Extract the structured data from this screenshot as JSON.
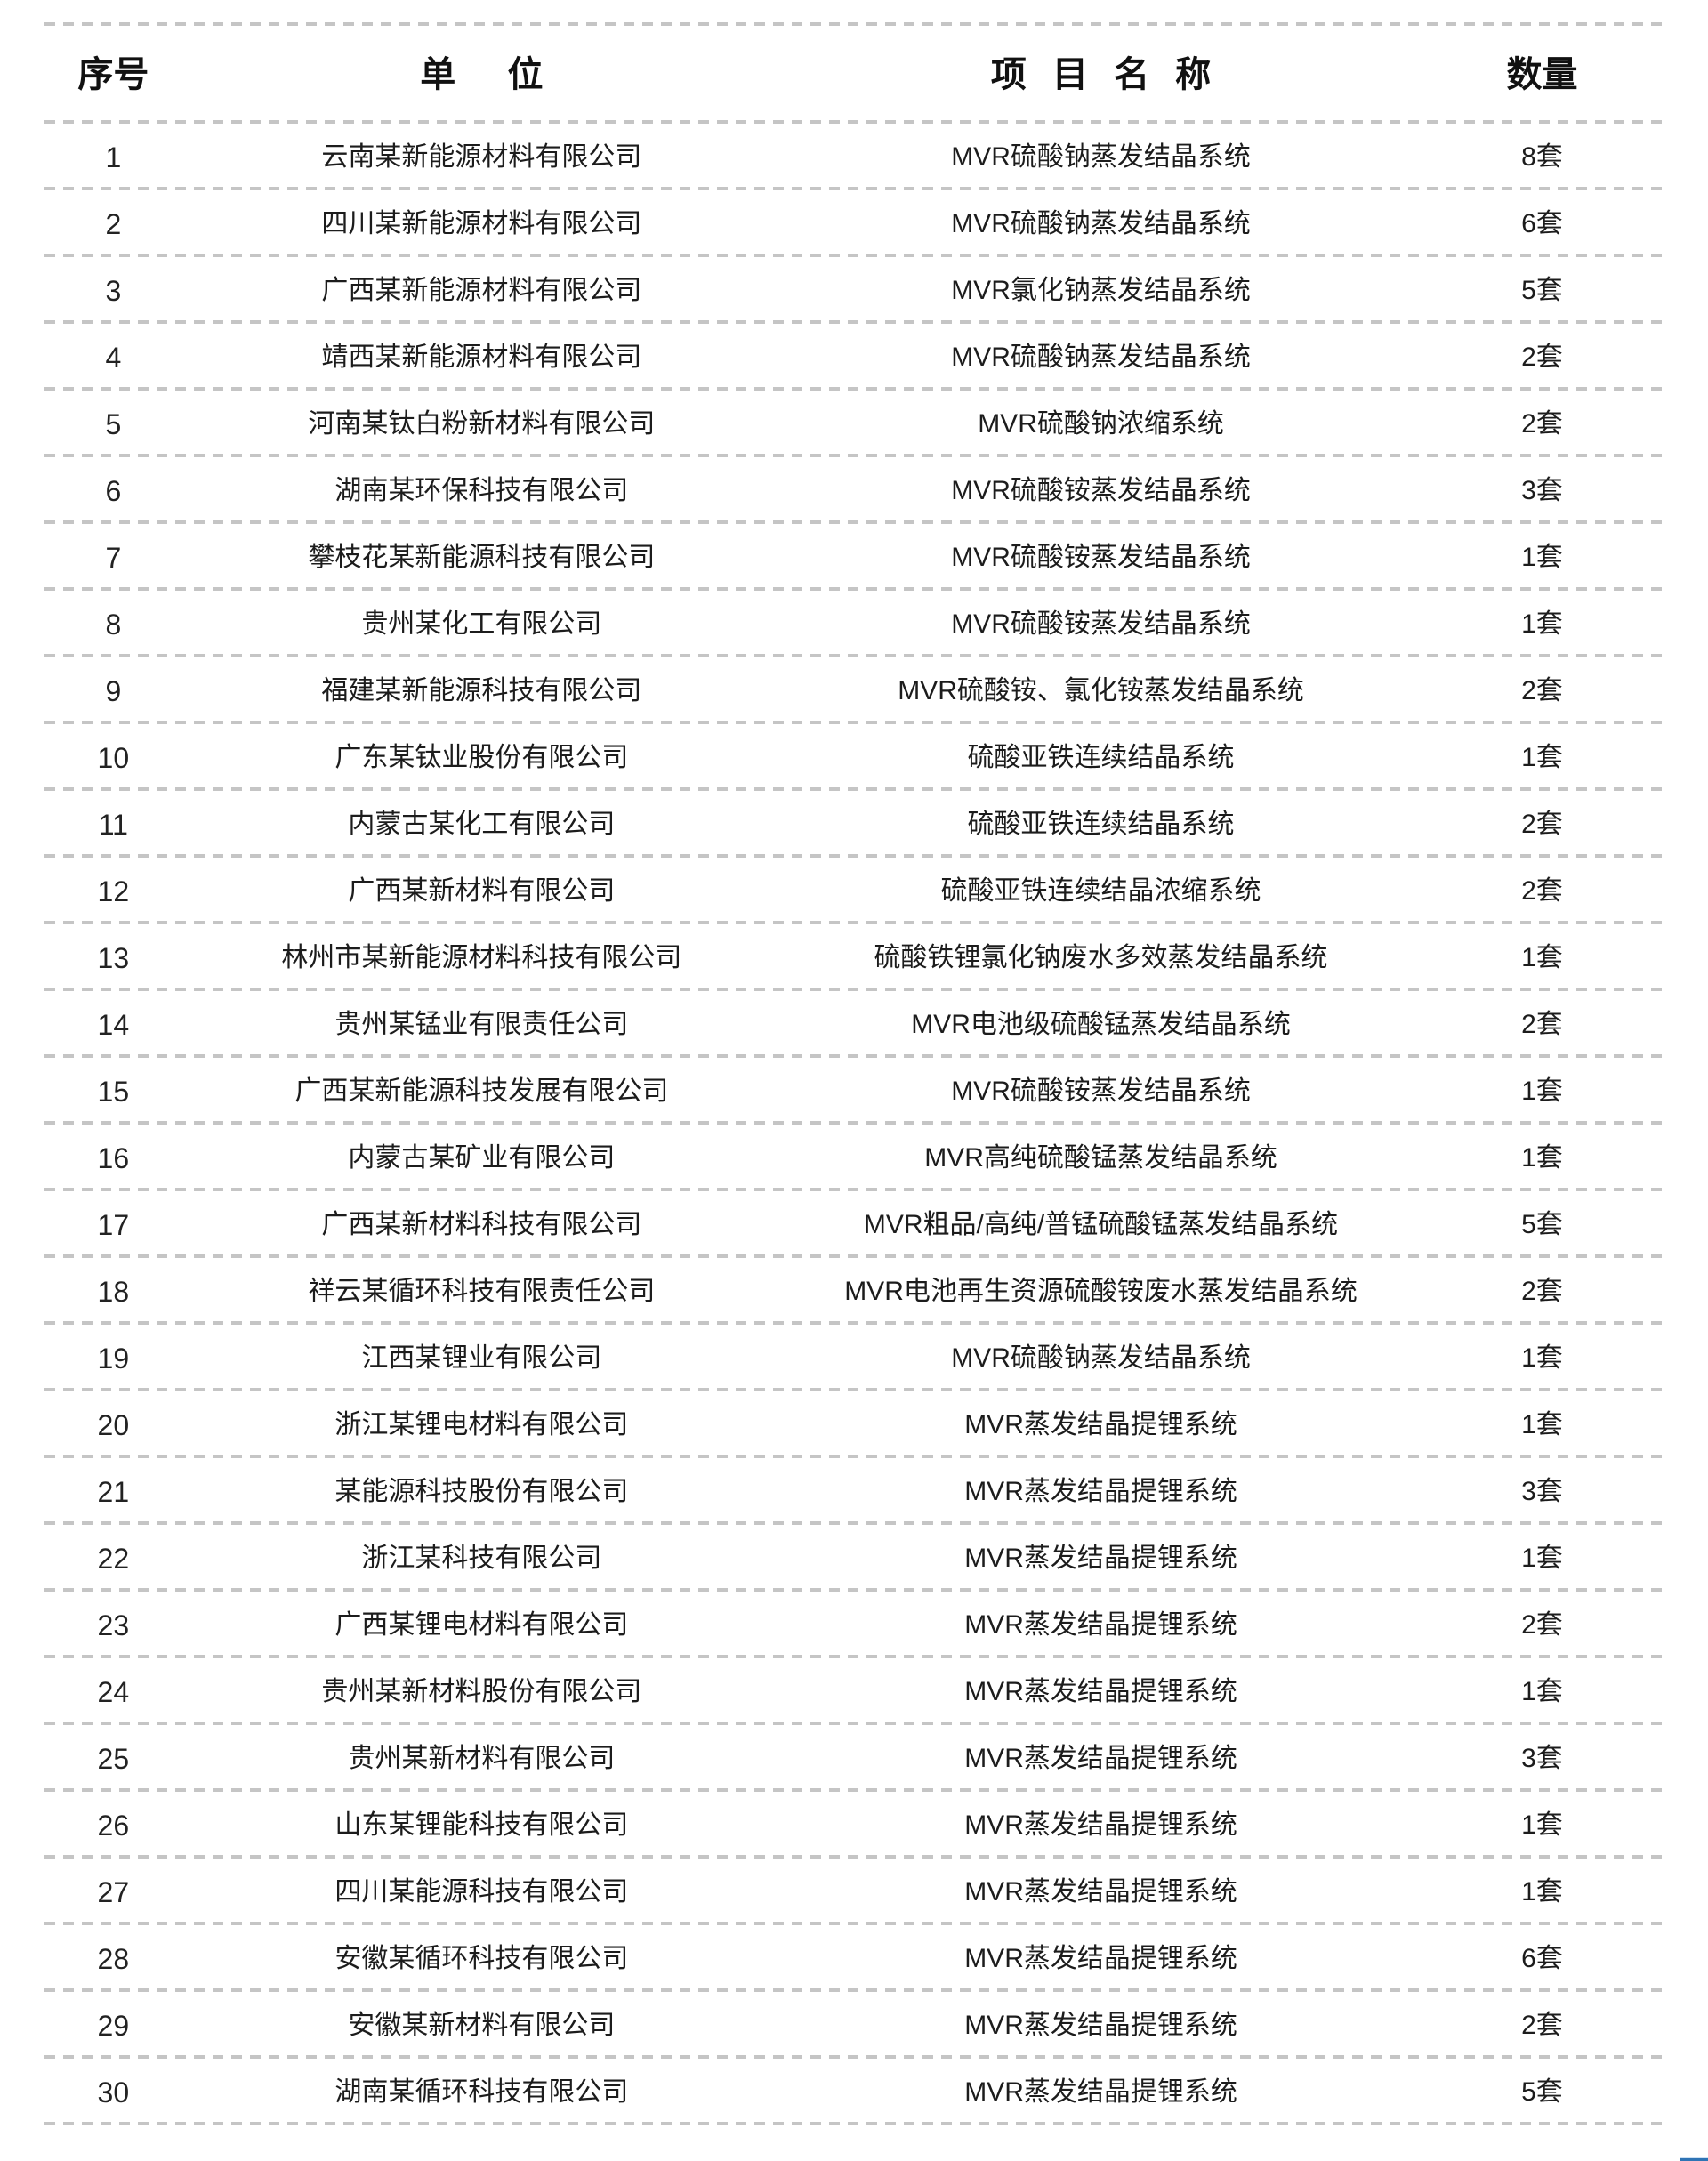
{
  "colors": {
    "text": "#1a1a1a",
    "dash_separator": "#c5c5c5",
    "accent_blue": "#2e74b5",
    "accent_blue_light": "#cfe2f3",
    "background": "#ffffff"
  },
  "table": {
    "headers": {
      "no": "序号",
      "company": "单  位",
      "project": "项 目 名 称",
      "qty": "数量"
    },
    "rows": [
      {
        "no": "1",
        "company": "云南某新能源材料有限公司",
        "project": "MVR硫酸钠蒸发结晶系统",
        "qty": "8套"
      },
      {
        "no": "2",
        "company": "四川某新能源材料有限公司",
        "project": "MVR硫酸钠蒸发结晶系统",
        "qty": "6套"
      },
      {
        "no": "3",
        "company": "广西某新能源材料有限公司",
        "project": "MVR氯化钠蒸发结晶系统",
        "qty": "5套"
      },
      {
        "no": "4",
        "company": "靖西某新能源材料有限公司",
        "project": "MVR硫酸钠蒸发结晶系统",
        "qty": "2套"
      },
      {
        "no": "5",
        "company": "河南某钛白粉新材料有限公司",
        "project": "MVR硫酸钠浓缩系统",
        "qty": "2套"
      },
      {
        "no": "6",
        "company": "湖南某环保科技有限公司",
        "project": "MVR硫酸铵蒸发结晶系统",
        "qty": "3套"
      },
      {
        "no": "7",
        "company": "攀枝花某新能源科技有限公司",
        "project": "MVR硫酸铵蒸发结晶系统",
        "qty": "1套"
      },
      {
        "no": "8",
        "company": "贵州某化工有限公司",
        "project": "MVR硫酸铵蒸发结晶系统",
        "qty": "1套"
      },
      {
        "no": "9",
        "company": "福建某新能源科技有限公司",
        "project": "MVR硫酸铵、氯化铵蒸发结晶系统",
        "qty": "2套"
      },
      {
        "no": "10",
        "company": "广东某钛业股份有限公司",
        "project": "硫酸亚铁连续结晶系统",
        "qty": "1套"
      },
      {
        "no": "11",
        "company": "内蒙古某化工有限公司",
        "project": "硫酸亚铁连续结晶系统",
        "qty": "2套"
      },
      {
        "no": "12",
        "company": "广西某新材料有限公司",
        "project": "硫酸亚铁连续结晶浓缩系统",
        "qty": "2套"
      },
      {
        "no": "13",
        "company": "林州市某新能源材料科技有限公司",
        "project": "硫酸铁锂氯化钠废水多效蒸发结晶系统",
        "qty": "1套"
      },
      {
        "no": "14",
        "company": "贵州某锰业有限责任公司",
        "project": "MVR电池级硫酸锰蒸发结晶系统",
        "qty": "2套"
      },
      {
        "no": "15",
        "company": "广西某新能源科技发展有限公司",
        "project": "MVR硫酸铵蒸发结晶系统",
        "qty": "1套"
      },
      {
        "no": "16",
        "company": "内蒙古某矿业有限公司",
        "project": "MVR高纯硫酸锰蒸发结晶系统",
        "qty": "1套"
      },
      {
        "no": "17",
        "company": "广西某新材料科技有限公司",
        "project": "MVR粗品/高纯/普锰硫酸锰蒸发结晶系统",
        "qty": "5套"
      },
      {
        "no": "18",
        "company": "祥云某循环科技有限责任公司",
        "project": "MVR电池再生资源硫酸铵废水蒸发结晶系统",
        "qty": "2套"
      },
      {
        "no": "19",
        "company": "江西某锂业有限公司",
        "project": "MVR硫酸钠蒸发结晶系统",
        "qty": "1套"
      },
      {
        "no": "20",
        "company": "浙江某锂电材料有限公司",
        "project": "MVR蒸发结晶提锂系统",
        "qty": "1套"
      },
      {
        "no": "21",
        "company": "某能源科技股份有限公司",
        "project": "MVR蒸发结晶提锂系统",
        "qty": "3套"
      },
      {
        "no": "22",
        "company": "浙江某科技有限公司",
        "project": "MVR蒸发结晶提锂系统",
        "qty": "1套"
      },
      {
        "no": "23",
        "company": "广西某锂电材料有限公司",
        "project": "MVR蒸发结晶提锂系统",
        "qty": "2套"
      },
      {
        "no": "24",
        "company": "贵州某新材料股份有限公司",
        "project": "MVR蒸发结晶提锂系统",
        "qty": "1套"
      },
      {
        "no": "25",
        "company": "贵州某新材料有限公司",
        "project": "MVR蒸发结晶提锂系统",
        "qty": "3套"
      },
      {
        "no": "26",
        "company": "山东某锂能科技有限公司",
        "project": "MVR蒸发结晶提锂系统",
        "qty": "1套"
      },
      {
        "no": "27",
        "company": "四川某能源科技有限公司",
        "project": "MVR蒸发结晶提锂系统",
        "qty": "1套"
      },
      {
        "no": "28",
        "company": "安徽某循环科技有限公司",
        "project": "MVR蒸发结晶提锂系统",
        "qty": "6套"
      },
      {
        "no": "29",
        "company": "安徽某新材料有限公司",
        "project": "MVR蒸发结晶提锂系统",
        "qty": "2套"
      },
      {
        "no": "30",
        "company": "湖南某循环科技有限公司",
        "project": "MVR蒸发结晶提锂系统",
        "qty": "5套"
      }
    ]
  }
}
